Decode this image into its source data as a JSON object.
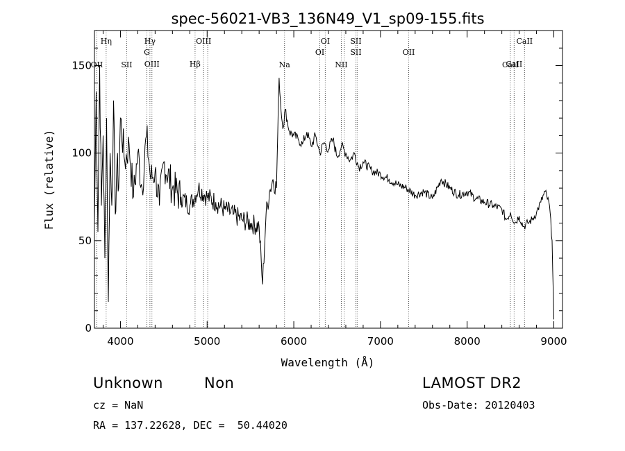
{
  "chart_data": {
    "type": "line",
    "title": "spec-56021-VB3_136N49_V1_sp09-155.fits",
    "xlabel": "Wavelength (Å)",
    "ylabel": "Flux (relative)",
    "xlim": [
      3700,
      9100
    ],
    "ylim": [
      0,
      170
    ],
    "x_ticks": [
      4000,
      5000,
      6000,
      7000,
      8000,
      9000
    ],
    "y_ticks": [
      0,
      50,
      100,
      150
    ],
    "grid": false,
    "series": [
      {
        "x": [
          3700,
          3720,
          3740,
          3760,
          3780,
          3800,
          3820,
          3840,
          3860,
          3880,
          3900,
          3920,
          3940,
          3960,
          3980,
          4000,
          4050,
          4100,
          4150,
          4200,
          4250,
          4300,
          4350,
          4400,
          4450,
          4500,
          4600,
          4700,
          4800,
          4900,
          5000,
          5100,
          5200,
          5300,
          5400,
          5500,
          5600,
          5640,
          5680,
          5720,
          5760,
          5800,
          5830,
          5860,
          5880,
          5900,
          5950,
          6000,
          6050,
          6100,
          6150,
          6200,
          6250,
          6300,
          6350,
          6400,
          6450,
          6500,
          6550,
          6600,
          6650,
          6700,
          6750,
          6800,
          6900,
          7000,
          7100,
          7200,
          7300,
          7400,
          7500,
          7600,
          7700,
          7800,
          7900,
          8000,
          8100,
          8200,
          8300,
          8400,
          8450,
          8500,
          8550,
          8600,
          8650,
          8700,
          8750,
          8800,
          8850,
          8900,
          8950,
          8980,
          9000
        ],
        "y": [
          60,
          135,
          55,
          150,
          70,
          110,
          40,
          120,
          15,
          100,
          70,
          130,
          65,
          95,
          80,
          120,
          95,
          105,
          75,
          100,
          80,
          110,
          85,
          90,
          70,
          95,
          80,
          75,
          70,
          80,
          75,
          72,
          68,
          65,
          62,
          60,
          58,
          25,
          65,
          78,
          85,
          80,
          143,
          120,
          115,
          125,
          112,
          110,
          108,
          105,
          112,
          104,
          110,
          100,
          106,
          102,
          108,
          98,
          104,
          100,
          96,
          100,
          92,
          95,
          90,
          88,
          85,
          82,
          80,
          76,
          78,
          74,
          85,
          80,
          76,
          78,
          74,
          72,
          70,
          68,
          62,
          66,
          60,
          64,
          58,
          60,
          62,
          66,
          72,
          78,
          70,
          50,
          5
        ]
      }
    ],
    "lines": [
      {
        "wl": 3727,
        "tiers": [
          3
        ],
        "labels": [
          "OII"
        ]
      },
      {
        "wl": 3835,
        "tiers": [
          0
        ],
        "labels": [
          "Hη"
        ]
      },
      {
        "wl": 4072,
        "tiers": [
          3
        ],
        "labels": [
          "SII"
        ]
      },
      {
        "wl": 4305,
        "tiers": [
          1
        ],
        "labels": [
          "G"
        ]
      },
      {
        "wl": 4340,
        "tiers": [
          0
        ],
        "labels": [
          "Hγ"
        ]
      },
      {
        "wl": 4363,
        "tiers": [
          2
        ],
        "labels": [
          "OIII"
        ]
      },
      {
        "wl": 4861,
        "tiers": [
          2
        ],
        "labels": [
          "Hβ"
        ]
      },
      {
        "wl": 4959,
        "tiers": [
          0
        ],
        "labels": [
          "OIII"
        ]
      },
      {
        "wl": 5007,
        "tiers": [],
        "labels": []
      },
      {
        "wl": 5893,
        "tiers": [
          3
        ],
        "labels": [
          "Na"
        ]
      },
      {
        "wl": 6300,
        "tiers": [
          1
        ],
        "labels": [
          "OI"
        ]
      },
      {
        "wl": 6363,
        "tiers": [
          0
        ],
        "labels": [
          "OI"
        ]
      },
      {
        "wl": 6548,
        "tiers": [
          3
        ],
        "labels": [
          "NII"
        ]
      },
      {
        "wl": 6583,
        "tiers": [],
        "labels": []
      },
      {
        "wl": 6716,
        "tiers": [
          0,
          1
        ],
        "labels": [
          "SII",
          "SII"
        ]
      },
      {
        "wl": 6731,
        "tiers": [],
        "labels": []
      },
      {
        "wl": 7325,
        "tiers": [
          1
        ],
        "labels": [
          "OII"
        ]
      },
      {
        "wl": 8498,
        "tiers": [
          3
        ],
        "labels": [
          "CaII"
        ]
      },
      {
        "wl": 8542,
        "tiers": [
          2
        ],
        "labels": [
          "CaII"
        ]
      },
      {
        "wl": 8662,
        "tiers": [
          0
        ],
        "labels": [
          "CaII"
        ]
      }
    ]
  },
  "info": {
    "class_label": "Unknown",
    "subclass_label": "Non",
    "survey": "LAMOST DR2",
    "redshift": "cz = NaN",
    "obs_date": "Obs-Date: 20120403",
    "coords": "RA = 137.22628, DEC =  50.44020"
  }
}
